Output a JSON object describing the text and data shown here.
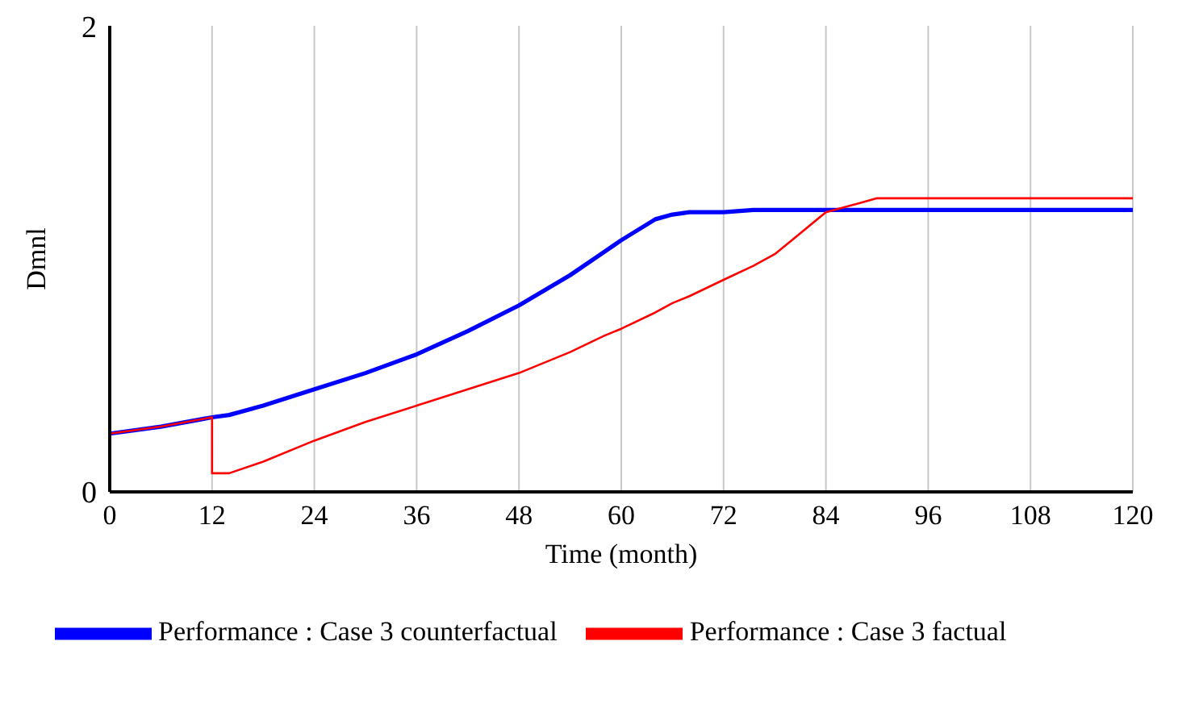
{
  "chart_data": {
    "type": "line",
    "xlabel": "Time (month)",
    "ylabel": "Dmnl",
    "x": [
      0,
      6,
      12,
      12,
      14,
      18,
      24,
      30,
      36,
      42,
      48,
      54,
      58,
      60,
      64,
      66,
      68,
      72,
      75.5,
      78,
      80,
      84,
      88,
      90,
      96,
      108,
      120
    ],
    "series": [
      {
        "name": "Performance : Case 3 counterfactual",
        "color": "#0000ff",
        "values": [
          0.25,
          0.28,
          0.32,
          0.32,
          0.33,
          0.37,
          0.44,
          0.51,
          0.59,
          0.69,
          0.8,
          0.93,
          1.03,
          1.08,
          1.17,
          1.19,
          1.2,
          1.2,
          1.21,
          1.21,
          1.21,
          1.21,
          1.21,
          1.21,
          1.21,
          1.21,
          1.21
        ]
      },
      {
        "name": "Performance : Case 3 factual",
        "color": "#ff0000",
        "values": [
          0.25,
          0.28,
          0.32,
          0.08,
          0.08,
          0.13,
          0.22,
          0.3,
          0.37,
          0.44,
          0.51,
          0.6,
          0.67,
          0.7,
          0.77,
          0.81,
          0.84,
          0.91,
          0.97,
          1.02,
          1.08,
          1.2,
          1.24,
          1.26,
          1.26,
          1.26,
          1.26
        ]
      }
    ],
    "xlim": [
      0,
      120
    ],
    "xticks": [
      0,
      12,
      24,
      36,
      48,
      60,
      72,
      84,
      96,
      108,
      120
    ],
    "ylim": [
      0,
      2
    ],
    "yticks": [
      0,
      2
    ],
    "grid": "x",
    "legend": "bottom",
    "marker": "none",
    "line_style": "solid"
  }
}
